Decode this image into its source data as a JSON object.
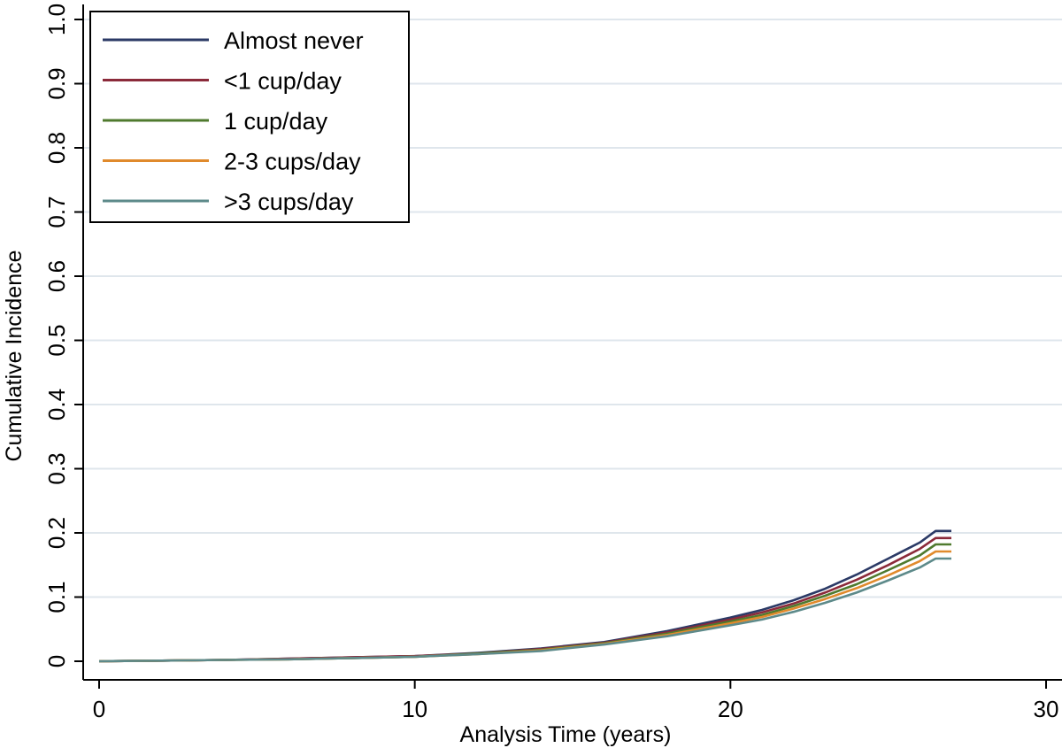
{
  "chart_data": {
    "type": "line",
    "title": "",
    "xlabel": "Analysis Time (years)",
    "ylabel": "Cumulative Incidence",
    "xlim": [
      0,
      30
    ],
    "ylim": [
      0,
      1.0
    ],
    "x_ticks": [
      0,
      10,
      20,
      30
    ],
    "y_ticks": [
      0,
      0.1,
      0.2,
      0.3,
      0.4,
      0.5,
      0.6,
      0.7,
      0.8,
      0.9,
      1.0
    ],
    "x_tick_labels": [
      "0",
      "10",
      "20",
      "30"
    ],
    "y_tick_labels": [
      "0",
      "0.1",
      "0.2",
      "0.3",
      "0.4",
      "0.5",
      "0.6",
      "0.7",
      "0.8",
      "0.9",
      "1.0"
    ],
    "grid": "horizontal",
    "legend_position": "top-left",
    "x": [
      0,
      2,
      4,
      6,
      8,
      10,
      12,
      14,
      16,
      18,
      20,
      21,
      22,
      23,
      24,
      25,
      26,
      26.5,
      27
    ],
    "series": [
      {
        "name": "Almost never",
        "color": "#2b3a66",
        "values": [
          0.0,
          0.001,
          0.002,
          0.004,
          0.006,
          0.008,
          0.013,
          0.02,
          0.03,
          0.047,
          0.068,
          0.08,
          0.095,
          0.113,
          0.135,
          0.16,
          0.185,
          0.203,
          0.203
        ]
      },
      {
        "name": "<1 cup/day",
        "color": "#8b2a3a",
        "values": [
          0.0,
          0.001,
          0.002,
          0.004,
          0.006,
          0.008,
          0.012,
          0.019,
          0.029,
          0.045,
          0.065,
          0.076,
          0.09,
          0.107,
          0.127,
          0.15,
          0.175,
          0.192,
          0.192
        ]
      },
      {
        "name": "1 cup/day",
        "color": "#4f7a2e",
        "values": [
          0.0,
          0.001,
          0.002,
          0.003,
          0.005,
          0.007,
          0.012,
          0.018,
          0.028,
          0.043,
          0.062,
          0.072,
          0.086,
          0.102,
          0.12,
          0.142,
          0.165,
          0.182,
          0.182
        ]
      },
      {
        "name": "2-3 cups/day",
        "color": "#e08a2c",
        "values": [
          0.0,
          0.001,
          0.002,
          0.003,
          0.005,
          0.007,
          0.011,
          0.017,
          0.027,
          0.041,
          0.059,
          0.069,
          0.082,
          0.097,
          0.114,
          0.134,
          0.156,
          0.171,
          0.171
        ]
      },
      {
        "name": ">3 cups/day",
        "color": "#5d8a8a",
        "values": [
          0.0,
          0.001,
          0.002,
          0.003,
          0.005,
          0.007,
          0.011,
          0.016,
          0.026,
          0.039,
          0.056,
          0.065,
          0.077,
          0.091,
          0.107,
          0.126,
          0.146,
          0.16,
          0.16
        ]
      }
    ]
  },
  "style": {
    "grid_color": "#dfe6ec",
    "axis_color": "#000000",
    "legend_border_color": "#000000"
  }
}
